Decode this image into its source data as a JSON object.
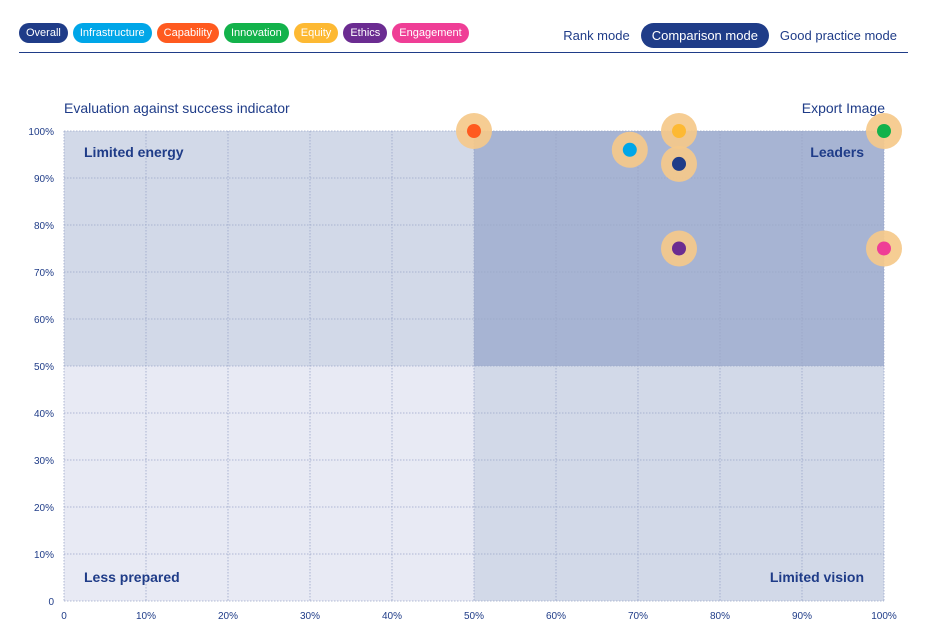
{
  "legend": {
    "pills": [
      {
        "label": "Overall",
        "color": "#1f3c88"
      },
      {
        "label": "Infrastructure",
        "color": "#00a6e8"
      },
      {
        "label": "Capability",
        "color": "#ff5a1f"
      },
      {
        "label": "Innovation",
        "color": "#13b24b"
      },
      {
        "label": "Equity",
        "color": "#fdb933"
      },
      {
        "label": "Ethics",
        "color": "#6b2c91"
      },
      {
        "label": "Engagement",
        "color": "#ef3e96"
      }
    ]
  },
  "modes": {
    "rank": "Rank mode",
    "comparison": "Comparison mode",
    "good_practice": "Good practice mode",
    "active": "comparison"
  },
  "header": {
    "title": "Evaluation against success indicator",
    "export": "Export Image"
  },
  "chart_data": {
    "type": "scatter",
    "x_ticks": [
      "0",
      "10%",
      "20%",
      "30%",
      "40%",
      "50%",
      "60%",
      "70%",
      "80%",
      "90%",
      "100%"
    ],
    "y_ticks": [
      "0",
      "10%",
      "20%",
      "30%",
      "40%",
      "50%",
      "60%",
      "70%",
      "80%",
      "90%",
      "100%"
    ],
    "xlim": [
      0,
      100
    ],
    "ylim": [
      0,
      100
    ],
    "grid": true,
    "quadrants": {
      "top_left": "Limited energy",
      "top_right": "Leaders",
      "bottom_left": "Less prepared",
      "bottom_right": "Limited vision"
    },
    "quadrant_colors": {
      "top_left": "#d2d9e8",
      "top_right": "#a7b4d3",
      "bottom_left": "#e8eaf4",
      "bottom_right": "#d2d9e8"
    },
    "halo_color": "#f5c98a",
    "points": [
      {
        "category": "Capability",
        "x": 50,
        "y": 100,
        "color": "#ff5a1f"
      },
      {
        "category": "Infrastructure",
        "x": 69,
        "y": 96,
        "color": "#00a6e8"
      },
      {
        "category": "Equity",
        "x": 75,
        "y": 100,
        "color": "#fdb933"
      },
      {
        "category": "Overall",
        "x": 75,
        "y": 93,
        "color": "#1f3c88"
      },
      {
        "category": "Ethics",
        "x": 75,
        "y": 75,
        "color": "#6b2c91"
      },
      {
        "category": "Innovation",
        "x": 100,
        "y": 100,
        "color": "#13b24b"
      },
      {
        "category": "Engagement",
        "x": 100,
        "y": 75,
        "color": "#ef3e96"
      }
    ]
  }
}
